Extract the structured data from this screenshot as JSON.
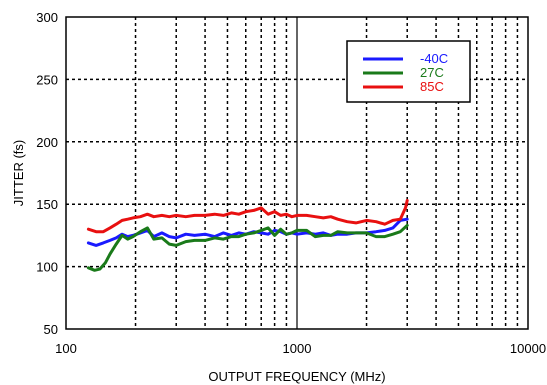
{
  "chart_data": {
    "type": "line",
    "xlabel": "OUTPUT FREQUENCY (MHz)",
    "ylabel": "JITTER (fs)",
    "x_scale": "log",
    "xlim": [
      100,
      10000
    ],
    "ylim": [
      50,
      300
    ],
    "x_ticks": [
      100,
      1000,
      10000
    ],
    "x_tick_labels": [
      "100",
      "1000",
      "10000"
    ],
    "y_ticks": [
      50,
      100,
      150,
      200,
      250,
      300
    ],
    "y_tick_labels": [
      "50",
      "100",
      "150",
      "200",
      "250",
      "300"
    ],
    "grid": true,
    "legend_position": "top-right",
    "series": [
      {
        "name": "-40C",
        "color": "#1a1aff",
        "x": [
          125,
          135,
          145,
          155,
          165,
          175,
          185,
          195,
          210,
          225,
          240,
          260,
          280,
          300,
          330,
          360,
          400,
          440,
          480,
          520,
          560,
          600,
          650,
          700,
          750,
          800,
          850,
          900,
          950,
          1000,
          1100,
          1200,
          1300,
          1400,
          1500,
          1650,
          1800,
          2000,
          2200,
          2400,
          2600,
          2800,
          3000
        ],
        "y": [
          119,
          117,
          119,
          121,
          123,
          126,
          124,
          125,
          127,
          129,
          124,
          127,
          124,
          123,
          126,
          125,
          126,
          124,
          127,
          125,
          127,
          126,
          128,
          127,
          126,
          129,
          128,
          126,
          127,
          126,
          127,
          126,
          127,
          125,
          126,
          126,
          127,
          127,
          128,
          129,
          131,
          137,
          138
        ]
      },
      {
        "name": "27C",
        "color": "#1a7a1a",
        "x": [
          125,
          133,
          140,
          148,
          155,
          165,
          175,
          185,
          195,
          210,
          225,
          240,
          260,
          280,
          300,
          330,
          360,
          400,
          440,
          480,
          520,
          560,
          600,
          650,
          700,
          750,
          800,
          850,
          900,
          950,
          1000,
          1100,
          1200,
          1300,
          1400,
          1500,
          1650,
          1800,
          2000,
          2200,
          2400,
          2600,
          2800,
          3000
        ],
        "y": [
          99,
          97,
          98,
          103,
          110,
          118,
          125,
          122,
          124,
          128,
          131,
          122,
          123,
          118,
          117,
          120,
          121,
          121,
          123,
          122,
          124,
          124,
          126,
          127,
          129,
          131,
          125,
          130,
          126,
          127,
          129,
          129,
          124,
          125,
          125,
          128,
          127,
          127,
          127,
          124,
          124,
          126,
          128,
          133
        ]
      },
      {
        "name": "85C",
        "color": "#e81010",
        "x": [
          125,
          135,
          145,
          155,
          165,
          175,
          185,
          195,
          210,
          225,
          240,
          260,
          280,
          300,
          330,
          360,
          400,
          440,
          480,
          520,
          560,
          600,
          650,
          700,
          750,
          800,
          850,
          900,
          950,
          1000,
          1100,
          1200,
          1300,
          1400,
          1500,
          1650,
          1800,
          2000,
          2200,
          2400,
          2600,
          2800,
          2950,
          3000
        ],
        "y": [
          130,
          128,
          128,
          131,
          134,
          137,
          138,
          139,
          140,
          142,
          140,
          141,
          140,
          141,
          140,
          141,
          141,
          142,
          141,
          143,
          142,
          144,
          145,
          147,
          142,
          144,
          141,
          142,
          140,
          141,
          141,
          140,
          139,
          140,
          138,
          136,
          135,
          137,
          136,
          134,
          137,
          138,
          147,
          153
        ]
      }
    ]
  }
}
